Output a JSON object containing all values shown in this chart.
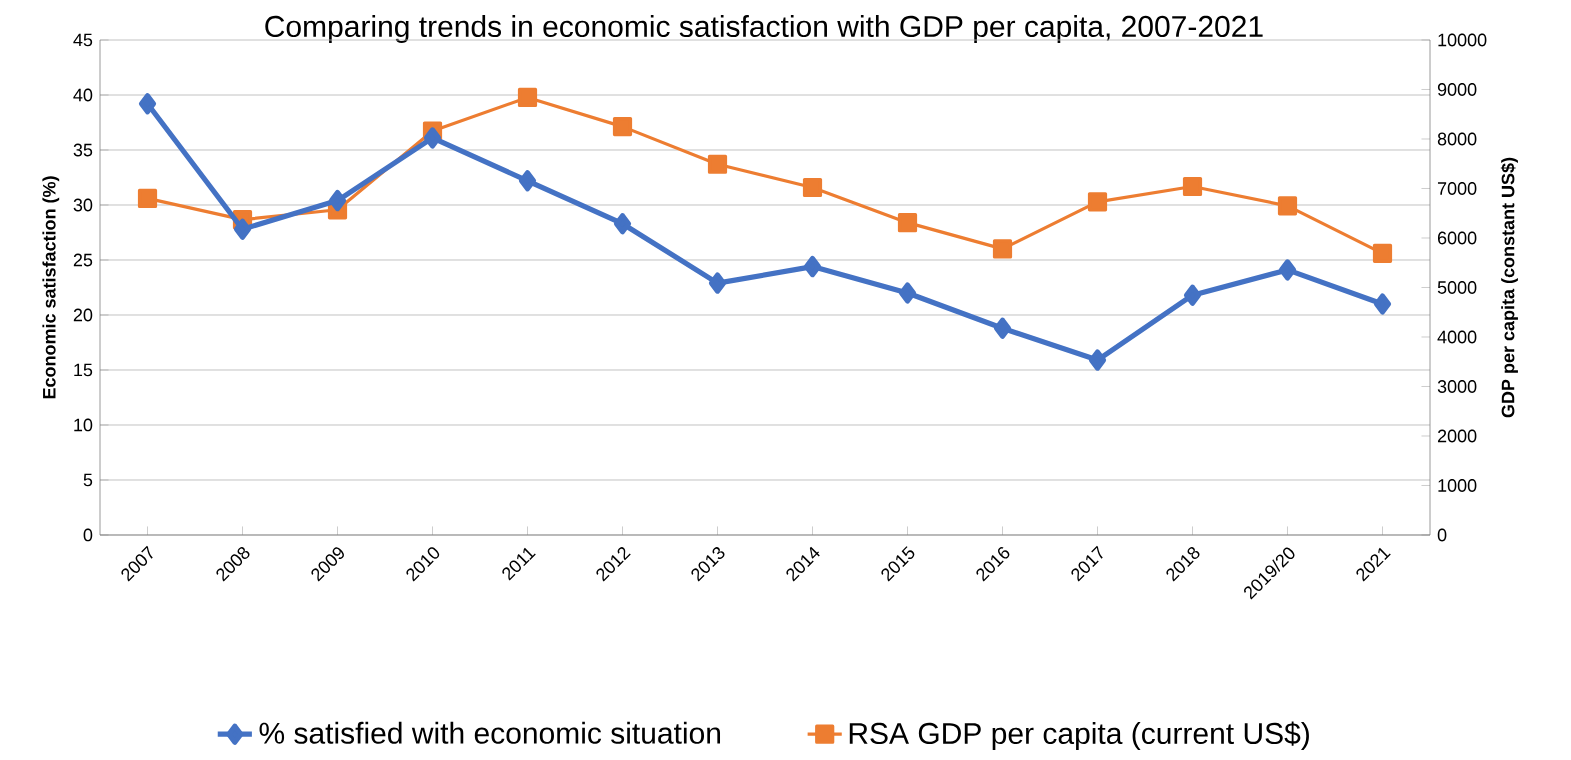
{
  "chart_data": {
    "type": "line",
    "title": "Comparing trends in economic satisfaction with GDP per capita, 2007-2021",
    "ylabel": "Economic satisfaction (%)",
    "y2label": "GDP per capita (constant US$)",
    "categories": [
      "2007",
      "2008",
      "2009",
      "2010",
      "2011",
      "2012",
      "2013",
      "2014",
      "2015",
      "2016",
      "2017",
      "2018",
      "2019/20",
      "2021"
    ],
    "series": [
      {
        "name": "% satisfied with economic situation",
        "color": "#4472c4",
        "marker": "diamond",
        "values": [
          39.2,
          27.8,
          30.4,
          36.1,
          32.2,
          28.3,
          22.9,
          24.4,
          22.0,
          18.8,
          15.9,
          21.8,
          24.1,
          21.0
        ]
      },
      {
        "name": "RSA GDP per capita (current US$)",
        "color": "#ed7d31",
        "marker": "square",
        "axis": "y2",
        "values": [
          6800,
          6370,
          6570,
          8160,
          8840,
          8250,
          7490,
          7020,
          6310,
          5780,
          6730,
          7040,
          6650,
          5690
        ]
      }
    ],
    "ylim": [
      0,
      45
    ],
    "yticks": [
      0,
      5,
      10,
      15,
      20,
      25,
      30,
      35,
      40,
      45
    ],
    "y2lim": [
      0,
      10000
    ],
    "y2ticks": [
      0,
      1000,
      2000,
      3000,
      4000,
      5000,
      6000,
      7000,
      8000,
      9000,
      10000
    ],
    "grid": "y",
    "legend": "bottom"
  }
}
